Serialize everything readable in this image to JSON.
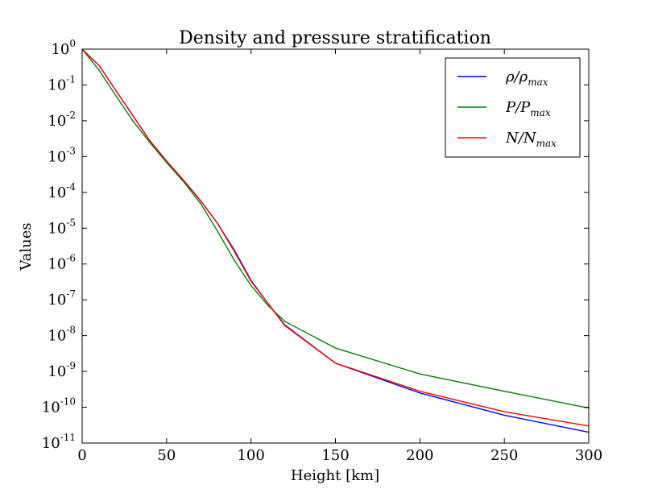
{
  "chart_data": {
    "type": "line",
    "title": "Density and pressure stratification",
    "xlabel": "Height [km]",
    "ylabel": "Values",
    "yscale": "log",
    "xlim": [
      0,
      300
    ],
    "ylim": [
      1e-11,
      1
    ],
    "x_ticks": [
      0,
      50,
      100,
      150,
      200,
      250,
      300
    ],
    "x_tick_labels": [
      "0",
      "50",
      "100",
      "150",
      "200",
      "250",
      "300"
    ],
    "y_ticks": [
      {
        "value": 1.0,
        "base": "10",
        "exp": "0"
      },
      {
        "value": 0.1,
        "base": "10",
        "exp": "-1"
      },
      {
        "value": 0.01,
        "base": "10",
        "exp": "-2"
      },
      {
        "value": 0.001,
        "base": "10",
        "exp": "-3"
      },
      {
        "value": 0.0001,
        "base": "10",
        "exp": "-4"
      },
      {
        "value": 1e-05,
        "base": "10",
        "exp": "-5"
      },
      {
        "value": 1e-06,
        "base": "10",
        "exp": "-6"
      },
      {
        "value": 1e-07,
        "base": "10",
        "exp": "-7"
      },
      {
        "value": 1e-08,
        "base": "10",
        "exp": "-8"
      },
      {
        "value": 1e-09,
        "base": "10",
        "exp": "-9"
      },
      {
        "value": 1e-10,
        "base": "10",
        "exp": "-10"
      },
      {
        "value": 1e-11,
        "base": "10",
        "exp": "-11"
      }
    ],
    "grid": false,
    "legend_position": "top-right",
    "x": [
      0,
      10,
      20,
      30,
      40,
      50,
      60,
      70,
      80,
      90,
      100,
      110,
      120,
      150,
      200,
      250,
      300
    ],
    "series": [
      {
        "name": "ρ/ρmax",
        "legend": {
          "main": "ρ/ρ",
          "sub": "max"
        },
        "color": "#0000ff",
        "values": [
          1,
          0.35,
          0.07,
          0.014,
          0.0028,
          0.00075,
          0.00022,
          6e-05,
          1.4e-05,
          2.5e-06,
          3.5e-07,
          8e-08,
          2e-08,
          1.7e-09,
          2.5e-10,
          6e-11,
          2e-11
        ]
      },
      {
        "name": "P/Pmax",
        "legend": {
          "main": "P/P",
          "sub": "max"
        },
        "color": "#008000",
        "values": [
          1,
          0.26,
          0.05,
          0.01,
          0.0025,
          0.00068,
          0.0002,
          5e-05,
          8.5e-06,
          1.3e-06,
          2.5e-07,
          7e-08,
          2.5e-08,
          4.5e-09,
          8.5e-10,
          2.8e-10,
          9.5e-11
        ]
      },
      {
        "name": "N/Nmax",
        "legend": {
          "main": "N/N",
          "sub": "max"
        },
        "color": "#ff0000",
        "values": [
          1,
          0.35,
          0.07,
          0.014,
          0.0028,
          0.00075,
          0.00022,
          6e-05,
          1.4e-05,
          2.3e-06,
          3.3e-07,
          8e-08,
          1.9e-08,
          1.7e-09,
          2.8e-10,
          7.5e-11,
          3e-11
        ]
      }
    ]
  }
}
